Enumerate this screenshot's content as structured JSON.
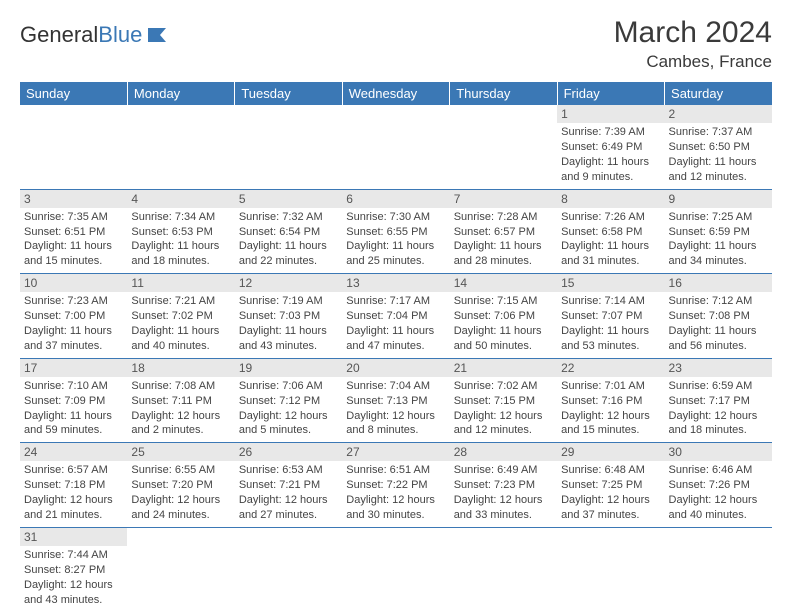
{
  "logo": {
    "text1": "General",
    "text2": "Blue"
  },
  "title": "March 2024",
  "location": "Cambes, France",
  "colors": {
    "header_bg": "#3b78b5",
    "header_text": "#ffffff",
    "daynum_bg": "#e8e8e8",
    "border": "#3b78b5",
    "body_text": "#444444"
  },
  "typography": {
    "title_fontsize": 30,
    "location_fontsize": 17,
    "dayheader_fontsize": 13,
    "cell_fontsize": 11
  },
  "day_headers": [
    "Sunday",
    "Monday",
    "Tuesday",
    "Wednesday",
    "Thursday",
    "Friday",
    "Saturday"
  ],
  "weeks": [
    [
      null,
      null,
      null,
      null,
      null,
      {
        "n": "1",
        "sr": "Sunrise: 7:39 AM",
        "ss": "Sunset: 6:49 PM",
        "d1": "Daylight: 11 hours",
        "d2": "and 9 minutes."
      },
      {
        "n": "2",
        "sr": "Sunrise: 7:37 AM",
        "ss": "Sunset: 6:50 PM",
        "d1": "Daylight: 11 hours",
        "d2": "and 12 minutes."
      }
    ],
    [
      {
        "n": "3",
        "sr": "Sunrise: 7:35 AM",
        "ss": "Sunset: 6:51 PM",
        "d1": "Daylight: 11 hours",
        "d2": "and 15 minutes."
      },
      {
        "n": "4",
        "sr": "Sunrise: 7:34 AM",
        "ss": "Sunset: 6:53 PM",
        "d1": "Daylight: 11 hours",
        "d2": "and 18 minutes."
      },
      {
        "n": "5",
        "sr": "Sunrise: 7:32 AM",
        "ss": "Sunset: 6:54 PM",
        "d1": "Daylight: 11 hours",
        "d2": "and 22 minutes."
      },
      {
        "n": "6",
        "sr": "Sunrise: 7:30 AM",
        "ss": "Sunset: 6:55 PM",
        "d1": "Daylight: 11 hours",
        "d2": "and 25 minutes."
      },
      {
        "n": "7",
        "sr": "Sunrise: 7:28 AM",
        "ss": "Sunset: 6:57 PM",
        "d1": "Daylight: 11 hours",
        "d2": "and 28 minutes."
      },
      {
        "n": "8",
        "sr": "Sunrise: 7:26 AM",
        "ss": "Sunset: 6:58 PM",
        "d1": "Daylight: 11 hours",
        "d2": "and 31 minutes."
      },
      {
        "n": "9",
        "sr": "Sunrise: 7:25 AM",
        "ss": "Sunset: 6:59 PM",
        "d1": "Daylight: 11 hours",
        "d2": "and 34 minutes."
      }
    ],
    [
      {
        "n": "10",
        "sr": "Sunrise: 7:23 AM",
        "ss": "Sunset: 7:00 PM",
        "d1": "Daylight: 11 hours",
        "d2": "and 37 minutes."
      },
      {
        "n": "11",
        "sr": "Sunrise: 7:21 AM",
        "ss": "Sunset: 7:02 PM",
        "d1": "Daylight: 11 hours",
        "d2": "and 40 minutes."
      },
      {
        "n": "12",
        "sr": "Sunrise: 7:19 AM",
        "ss": "Sunset: 7:03 PM",
        "d1": "Daylight: 11 hours",
        "d2": "and 43 minutes."
      },
      {
        "n": "13",
        "sr": "Sunrise: 7:17 AM",
        "ss": "Sunset: 7:04 PM",
        "d1": "Daylight: 11 hours",
        "d2": "and 47 minutes."
      },
      {
        "n": "14",
        "sr": "Sunrise: 7:15 AM",
        "ss": "Sunset: 7:06 PM",
        "d1": "Daylight: 11 hours",
        "d2": "and 50 minutes."
      },
      {
        "n": "15",
        "sr": "Sunrise: 7:14 AM",
        "ss": "Sunset: 7:07 PM",
        "d1": "Daylight: 11 hours",
        "d2": "and 53 minutes."
      },
      {
        "n": "16",
        "sr": "Sunrise: 7:12 AM",
        "ss": "Sunset: 7:08 PM",
        "d1": "Daylight: 11 hours",
        "d2": "and 56 minutes."
      }
    ],
    [
      {
        "n": "17",
        "sr": "Sunrise: 7:10 AM",
        "ss": "Sunset: 7:09 PM",
        "d1": "Daylight: 11 hours",
        "d2": "and 59 minutes."
      },
      {
        "n": "18",
        "sr": "Sunrise: 7:08 AM",
        "ss": "Sunset: 7:11 PM",
        "d1": "Daylight: 12 hours",
        "d2": "and 2 minutes."
      },
      {
        "n": "19",
        "sr": "Sunrise: 7:06 AM",
        "ss": "Sunset: 7:12 PM",
        "d1": "Daylight: 12 hours",
        "d2": "and 5 minutes."
      },
      {
        "n": "20",
        "sr": "Sunrise: 7:04 AM",
        "ss": "Sunset: 7:13 PM",
        "d1": "Daylight: 12 hours",
        "d2": "and 8 minutes."
      },
      {
        "n": "21",
        "sr": "Sunrise: 7:02 AM",
        "ss": "Sunset: 7:15 PM",
        "d1": "Daylight: 12 hours",
        "d2": "and 12 minutes."
      },
      {
        "n": "22",
        "sr": "Sunrise: 7:01 AM",
        "ss": "Sunset: 7:16 PM",
        "d1": "Daylight: 12 hours",
        "d2": "and 15 minutes."
      },
      {
        "n": "23",
        "sr": "Sunrise: 6:59 AM",
        "ss": "Sunset: 7:17 PM",
        "d1": "Daylight: 12 hours",
        "d2": "and 18 minutes."
      }
    ],
    [
      {
        "n": "24",
        "sr": "Sunrise: 6:57 AM",
        "ss": "Sunset: 7:18 PM",
        "d1": "Daylight: 12 hours",
        "d2": "and 21 minutes."
      },
      {
        "n": "25",
        "sr": "Sunrise: 6:55 AM",
        "ss": "Sunset: 7:20 PM",
        "d1": "Daylight: 12 hours",
        "d2": "and 24 minutes."
      },
      {
        "n": "26",
        "sr": "Sunrise: 6:53 AM",
        "ss": "Sunset: 7:21 PM",
        "d1": "Daylight: 12 hours",
        "d2": "and 27 minutes."
      },
      {
        "n": "27",
        "sr": "Sunrise: 6:51 AM",
        "ss": "Sunset: 7:22 PM",
        "d1": "Daylight: 12 hours",
        "d2": "and 30 minutes."
      },
      {
        "n": "28",
        "sr": "Sunrise: 6:49 AM",
        "ss": "Sunset: 7:23 PM",
        "d1": "Daylight: 12 hours",
        "d2": "and 33 minutes."
      },
      {
        "n": "29",
        "sr": "Sunrise: 6:48 AM",
        "ss": "Sunset: 7:25 PM",
        "d1": "Daylight: 12 hours",
        "d2": "and 37 minutes."
      },
      {
        "n": "30",
        "sr": "Sunrise: 6:46 AM",
        "ss": "Sunset: 7:26 PM",
        "d1": "Daylight: 12 hours",
        "d2": "and 40 minutes."
      }
    ],
    [
      {
        "n": "31",
        "sr": "Sunrise: 7:44 AM",
        "ss": "Sunset: 8:27 PM",
        "d1": "Daylight: 12 hours",
        "d2": "and 43 minutes."
      },
      null,
      null,
      null,
      null,
      null,
      null
    ]
  ]
}
